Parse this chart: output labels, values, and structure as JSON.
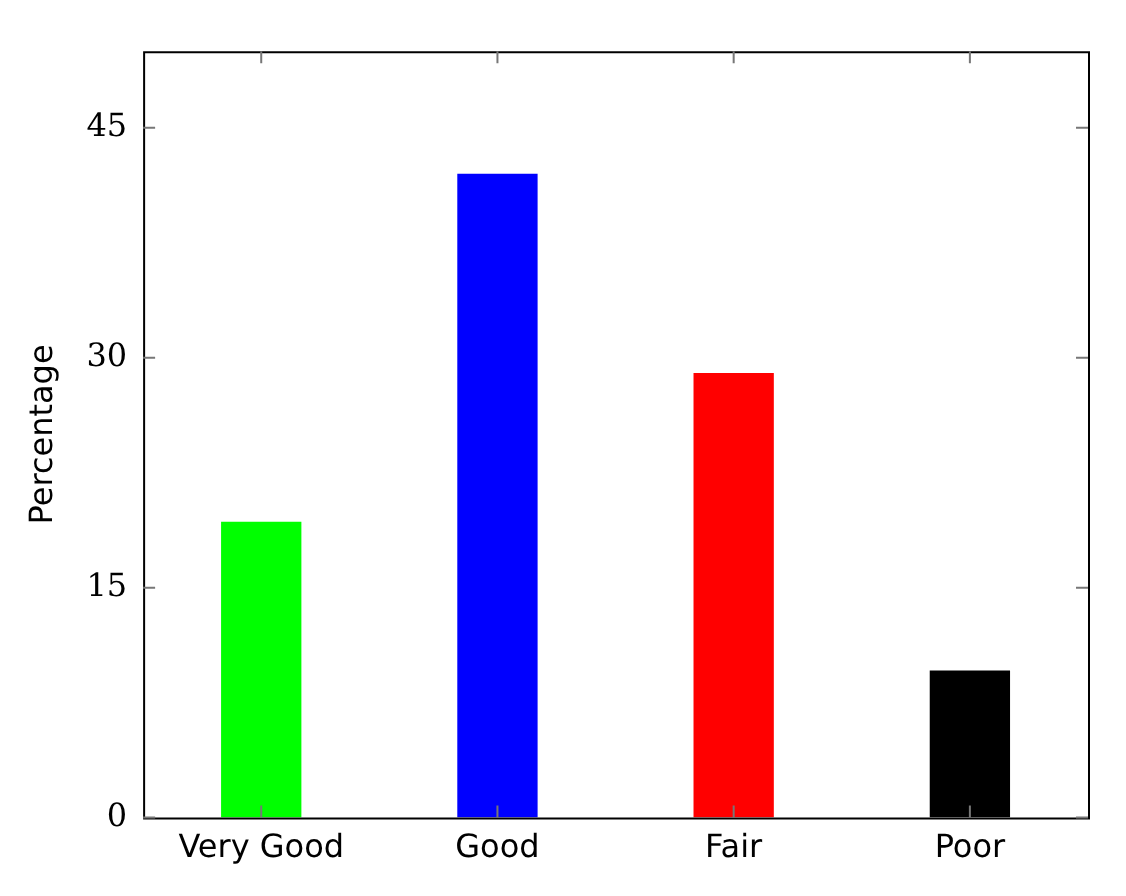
{
  "chart_data": {
    "type": "bar",
    "ylabel": "Percentage",
    "categories": [
      "Very Good",
      "Good",
      "Fair",
      "Poor"
    ],
    "values": [
      19.3,
      42,
      29,
      9.6
    ],
    "colors": [
      "#00ff00",
      "#0000ff",
      "#ff0000",
      "#000000"
    ],
    "ylim": [
      0,
      50
    ],
    "yticks": [
      0,
      15,
      30,
      45
    ],
    "grid": false,
    "legend": false
  }
}
